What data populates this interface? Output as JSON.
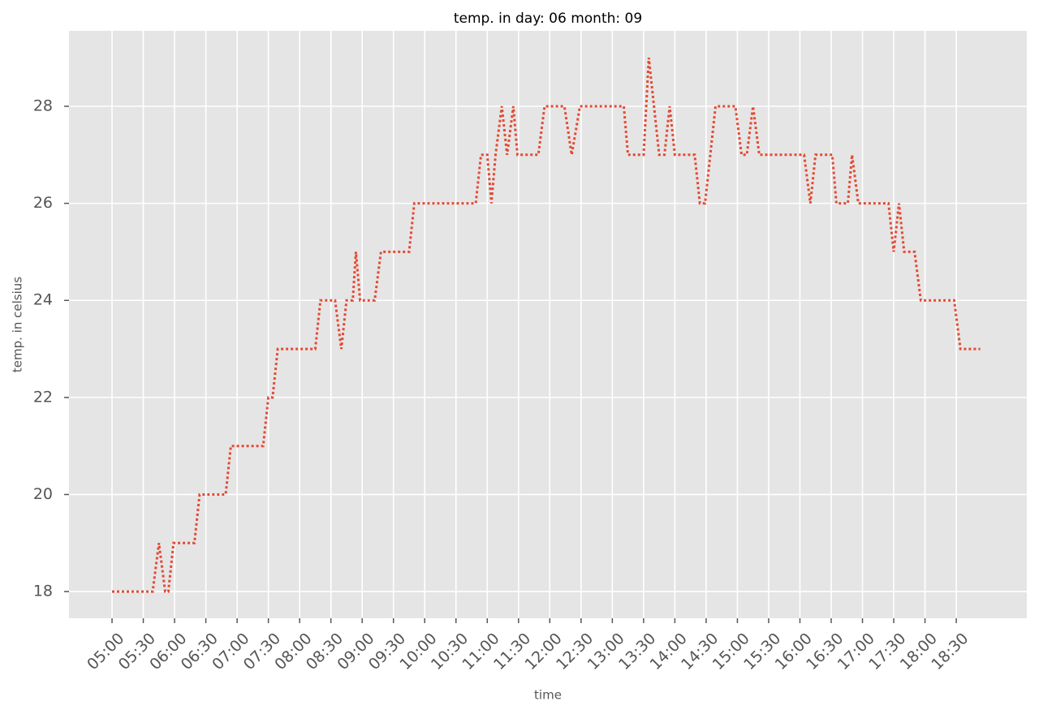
{
  "chart_data": {
    "type": "line",
    "title": "temp. in day: 06 month: 09",
    "xlabel": "time",
    "ylabel": "temp. in celsius",
    "x": [
      300,
      339,
      345,
      351,
      354,
      359,
      379,
      384,
      409,
      414,
      445,
      450,
      454,
      459,
      495,
      500,
      514,
      520,
      525,
      531,
      534,
      538,
      552,
      558,
      585,
      590,
      649,
      654,
      660,
      664,
      668,
      674,
      679,
      685,
      689,
      709,
      715,
      734,
      741,
      749,
      791,
      795,
      810,
      815,
      820,
      825,
      830,
      835,
      840,
      859,
      864,
      869,
      879,
      898,
      904,
      909,
      915,
      921,
      964,
      970,
      975,
      991,
      995,
      1006,
      1010,
      1016,
      1045,
      1050,
      1055,
      1060,
      1070,
      1076,
      1108,
      1114,
      1133
    ],
    "series": [
      {
        "color": "#E24A33",
        "values": [
          18,
          18,
          19,
          18,
          18,
          19,
          19,
          20,
          20,
          21,
          21,
          22,
          22,
          23,
          23,
          24,
          24,
          23,
          24,
          24,
          25,
          24,
          24,
          25,
          25,
          26,
          26,
          27,
          27,
          26,
          27,
          28,
          27,
          28,
          27,
          27,
          28,
          28,
          27,
          28,
          28,
          27,
          27,
          29,
          28,
          27,
          27,
          28,
          27,
          27,
          26,
          26,
          28,
          28,
          27,
          27,
          28,
          27,
          27,
          26,
          27,
          27,
          26,
          26,
          27,
          26,
          26,
          25,
          26,
          25,
          25,
          24,
          24,
          23,
          23
        ]
      }
    ],
    "xlim": [
      258.7,
      1177.7
    ],
    "xticks": [
      {
        "value": 300,
        "label": "05:00"
      },
      {
        "value": 330,
        "label": "05:30"
      },
      {
        "value": 360,
        "label": "06:00"
      },
      {
        "value": 390,
        "label": "06:30"
      },
      {
        "value": 420,
        "label": "07:00"
      },
      {
        "value": 450,
        "label": "07:30"
      },
      {
        "value": 480,
        "label": "08:00"
      },
      {
        "value": 510,
        "label": "08:30"
      },
      {
        "value": 540,
        "label": "09:00"
      },
      {
        "value": 570,
        "label": "09:30"
      },
      {
        "value": 600,
        "label": "10:00"
      },
      {
        "value": 630,
        "label": "10:30"
      },
      {
        "value": 660,
        "label": "11:00"
      },
      {
        "value": 690,
        "label": "11:30"
      },
      {
        "value": 720,
        "label": "12:00"
      },
      {
        "value": 750,
        "label": "12:30"
      },
      {
        "value": 780,
        "label": "13:00"
      },
      {
        "value": 810,
        "label": "13:30"
      },
      {
        "value": 840,
        "label": "14:00"
      },
      {
        "value": 870,
        "label": "14:30"
      },
      {
        "value": 900,
        "label": "15:00"
      },
      {
        "value": 930,
        "label": "15:30"
      },
      {
        "value": 960,
        "label": "16:00"
      },
      {
        "value": 990,
        "label": "16:30"
      },
      {
        "value": 1020,
        "label": "17:00"
      },
      {
        "value": 1050,
        "label": "17:30"
      },
      {
        "value": 1080,
        "label": "18:00"
      },
      {
        "value": 1110,
        "label": "18:30"
      }
    ],
    "ylim": [
      17.45,
      29.555
    ],
    "yticks": [
      18,
      20,
      22,
      24,
      26,
      28
    ],
    "grid": true
  }
}
